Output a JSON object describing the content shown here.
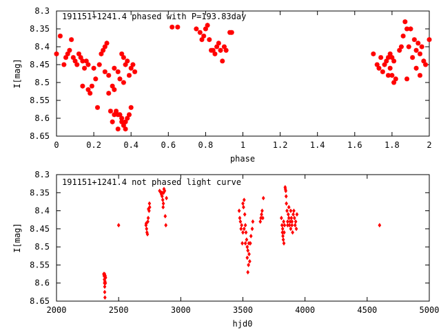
{
  "colors": {
    "points": "#ff0000",
    "axes": "#000000",
    "background": "#ffffff"
  },
  "chart_data": [
    {
      "type": "scatter",
      "title": "191151+1241.4 phased with P=193.83day",
      "xlabel": "phase",
      "ylabel": "I[mag]",
      "xlim": [
        0,
        2
      ],
      "ylim": [
        8.3,
        8.65
      ],
      "y_inverted": true,
      "grid": false,
      "x_ticks": [
        "0",
        "0.2",
        "0.4",
        "0.6",
        "0.8",
        "1",
        "1.2",
        "1.4",
        "1.6",
        "1.8",
        "2"
      ],
      "y_ticks": [
        "8.3",
        "8.35",
        "8.4",
        "8.45",
        "8.5",
        "8.55",
        "8.6",
        "8.65"
      ],
      "marker": "star",
      "series": [
        {
          "points": [
            [
              0.0,
              8.42
            ],
            [
              0.02,
              8.37
            ],
            [
              0.04,
              8.45
            ],
            [
              0.05,
              8.43
            ],
            [
              0.06,
              8.42
            ],
            [
              0.07,
              8.41
            ],
            [
              0.08,
              8.38
            ],
            [
              0.09,
              8.43
            ],
            [
              0.1,
              8.44
            ],
            [
              0.11,
              8.45
            ],
            [
              0.12,
              8.42
            ],
            [
              0.13,
              8.43
            ],
            [
              0.14,
              8.44
            ],
            [
              0.15,
              8.46
            ],
            [
              0.16,
              8.44
            ],
            [
              0.17,
              8.45
            ],
            [
              0.14,
              8.51
            ],
            [
              0.18,
              8.53
            ],
            [
              0.19,
              8.51
            ],
            [
              0.17,
              8.52
            ],
            [
              0.2,
              8.46
            ],
            [
              0.21,
              8.49
            ],
            [
              0.22,
              8.57
            ],
            [
              0.24,
              8.42
            ],
            [
              0.25,
              8.41
            ],
            [
              0.26,
              8.4
            ],
            [
              0.27,
              8.39
            ],
            [
              0.28,
              8.48
            ],
            [
              0.28,
              8.53
            ],
            [
              0.3,
              8.51
            ],
            [
              0.31,
              8.52
            ],
            [
              0.32,
              8.58
            ],
            [
              0.33,
              8.59
            ],
            [
              0.34,
              8.59
            ],
            [
              0.35,
              8.6
            ],
            [
              0.36,
              8.62
            ],
            [
              0.37,
              8.61
            ],
            [
              0.38,
              8.6
            ],
            [
              0.39,
              8.59
            ],
            [
              0.4,
              8.57
            ],
            [
              0.31,
              8.46
            ],
            [
              0.33,
              8.47
            ],
            [
              0.35,
              8.42
            ],
            [
              0.36,
              8.43
            ],
            [
              0.37,
              8.45
            ],
            [
              0.38,
              8.44
            ],
            [
              0.4,
              8.46
            ],
            [
              0.41,
              8.45
            ],
            [
              0.42,
              8.47
            ],
            [
              0.34,
              8.49
            ],
            [
              0.36,
              8.5
            ],
            [
              0.39,
              8.48
            ],
            [
              0.23,
              8.45
            ],
            [
              0.26,
              8.47
            ],
            [
              0.33,
              8.63
            ],
            [
              0.37,
              8.63
            ],
            [
              0.29,
              8.58
            ],
            [
              0.31,
              8.59
            ],
            [
              0.3,
              8.61
            ],
            [
              0.35,
              8.61
            ],
            [
              0.62,
              8.345
            ],
            [
              0.65,
              8.345
            ],
            [
              0.75,
              8.35
            ],
            [
              0.77,
              8.36
            ],
            [
              0.78,
              8.38
            ],
            [
              0.79,
              8.37
            ],
            [
              0.8,
              8.35
            ],
            [
              0.81,
              8.34
            ],
            [
              0.82,
              8.38
            ],
            [
              0.83,
              8.41
            ],
            [
              0.84,
              8.41
            ],
            [
              0.85,
              8.42
            ],
            [
              0.86,
              8.4
            ],
            [
              0.87,
              8.39
            ],
            [
              0.88,
              8.41
            ],
            [
              0.89,
              8.44
            ],
            [
              0.9,
              8.4
            ],
            [
              0.91,
              8.41
            ],
            [
              0.93,
              8.36
            ],
            [
              0.94,
              8.36
            ],
            [
              1.7,
              8.42
            ],
            [
              1.72,
              8.45
            ],
            [
              1.73,
              8.46
            ],
            [
              1.74,
              8.43
            ],
            [
              1.75,
              8.47
            ],
            [
              1.76,
              8.45
            ],
            [
              1.77,
              8.44
            ],
            [
              1.78,
              8.43
            ],
            [
              1.79,
              8.42
            ],
            [
              1.78,
              8.48
            ],
            [
              1.79,
              8.46
            ],
            [
              1.8,
              8.48
            ],
            [
              1.81,
              8.44
            ],
            [
              1.82,
              8.49
            ],
            [
              1.84,
              8.41
            ],
            [
              1.85,
              8.4
            ],
            [
              1.86,
              8.37
            ],
            [
              1.87,
              8.33
            ],
            [
              1.88,
              8.35
            ],
            [
              1.89,
              8.4
            ],
            [
              1.9,
              8.35
            ],
            [
              1.91,
              8.43
            ],
            [
              1.92,
              8.38
            ],
            [
              1.93,
              8.41
            ],
            [
              1.94,
              8.39
            ],
            [
              1.95,
              8.42
            ],
            [
              1.96,
              8.4
            ],
            [
              1.97,
              8.44
            ],
            [
              1.98,
              8.45
            ],
            [
              2.0,
              8.38
            ],
            [
              1.8,
              8.43
            ],
            [
              1.81,
              8.5
            ],
            [
              1.88,
              8.49
            ],
            [
              1.93,
              8.46
            ],
            [
              1.95,
              8.48
            ]
          ]
        }
      ]
    },
    {
      "type": "scatter",
      "title": "191151+1241.4 not phased light curve",
      "xlabel": "hjd0",
      "ylabel": "I[mag]",
      "xlim": [
        2000,
        5000
      ],
      "ylim": [
        8.3,
        8.65
      ],
      "y_inverted": true,
      "grid": false,
      "x_ticks": [
        "2000",
        "2500",
        "3000",
        "3500",
        "4000",
        "4500",
        "5000"
      ],
      "y_ticks": [
        "8.3",
        "8.35",
        "8.4",
        "8.45",
        "8.5",
        "8.55",
        "8.6",
        "8.65"
      ],
      "marker": "diamond",
      "series": [
        {
          "points": [
            [
              2380,
              8.575
            ],
            [
              2383,
              8.58
            ],
            [
              2385,
              8.59
            ],
            [
              2386,
              8.6
            ],
            [
              2388,
              8.61
            ],
            [
              2390,
              8.595
            ],
            [
              2392,
              8.58
            ],
            [
              2394,
              8.6
            ],
            [
              2388,
              8.625
            ],
            [
              2390,
              8.64
            ],
            [
              2395,
              8.585
            ],
            [
              2387,
              8.575
            ],
            [
              2500,
              8.44
            ],
            [
              2720,
              8.44
            ],
            [
              2725,
              8.45
            ],
            [
              2728,
              8.46
            ],
            [
              2732,
              8.465
            ],
            [
              2735,
              8.43
            ],
            [
              2738,
              8.42
            ],
            [
              2740,
              8.395
            ],
            [
              2745,
              8.4
            ],
            [
              2748,
              8.38
            ],
            [
              2750,
              8.39
            ],
            [
              2722,
              8.435
            ],
            [
              2830,
              8.345
            ],
            [
              2840,
              8.35
            ],
            [
              2845,
              8.355
            ],
            [
              2850,
              8.36
            ],
            [
              2855,
              8.37
            ],
            [
              2860,
              8.38
            ],
            [
              2862,
              8.35
            ],
            [
              2865,
              8.34
            ],
            [
              2870,
              8.345
            ],
            [
              2875,
              8.415
            ],
            [
              2880,
              8.44
            ],
            [
              2885,
              8.365
            ],
            [
              2848,
              8.35
            ],
            [
              2858,
              8.39
            ],
            [
              3470,
              8.4
            ],
            [
              3475,
              8.42
            ],
            [
              3480,
              8.43
            ],
            [
              3485,
              8.45
            ],
            [
              3490,
              8.44
            ],
            [
              3495,
              8.49
            ],
            [
              3500,
              8.38
            ],
            [
              3505,
              8.39
            ],
            [
              3510,
              8.37
            ],
            [
              3515,
              8.41
            ],
            [
              3520,
              8.44
            ],
            [
              3525,
              8.46
            ],
            [
              3530,
              8.48
            ],
            [
              3535,
              8.5
            ],
            [
              3540,
              8.51
            ],
            [
              3545,
              8.55
            ],
            [
              3550,
              8.52
            ],
            [
              3555,
              8.54
            ],
            [
              3560,
              8.49
            ],
            [
              3565,
              8.47
            ],
            [
              3575,
              8.45
            ],
            [
              3580,
              8.43
            ],
            [
              3540,
              8.57
            ],
            [
              3535,
              8.53
            ],
            [
              3520,
              8.49
            ],
            [
              3510,
              8.45
            ],
            [
              3500,
              8.46
            ],
            [
              3548,
              8.49
            ],
            [
              3640,
              8.43
            ],
            [
              3645,
              8.42
            ],
            [
              3650,
              8.41
            ],
            [
              3655,
              8.4
            ],
            [
              3660,
              8.42
            ],
            [
              3665,
              8.365
            ],
            [
              3810,
              8.42
            ],
            [
              3815,
              8.44
            ],
            [
              3818,
              8.46
            ],
            [
              3820,
              8.45
            ],
            [
              3822,
              8.47
            ],
            [
              3825,
              8.48
            ],
            [
              3828,
              8.43
            ],
            [
              3830,
              8.49
            ],
            [
              3832,
              8.46
            ],
            [
              3835,
              8.44
            ],
            [
              3840,
              8.335
            ],
            [
              3842,
              8.34
            ],
            [
              3845,
              8.345
            ],
            [
              3848,
              8.36
            ],
            [
              3850,
              8.38
            ],
            [
              3855,
              8.4
            ],
            [
              3860,
              8.43
            ],
            [
              3865,
              8.41
            ],
            [
              3870,
              8.42
            ],
            [
              3875,
              8.44
            ],
            [
              3880,
              8.43
            ],
            [
              3885,
              8.45
            ],
            [
              3890,
              8.42
            ],
            [
              3895,
              8.44
            ],
            [
              3900,
              8.46
            ],
            [
              3905,
              8.41
            ],
            [
              3910,
              8.4
            ],
            [
              3915,
              8.42
            ],
            [
              3920,
              8.44
            ],
            [
              3925,
              8.43
            ],
            [
              3930,
              8.45
            ],
            [
              3935,
              8.41
            ],
            [
              3895,
              8.43
            ],
            [
              3885,
              8.4
            ],
            [
              3860,
              8.44
            ],
            [
              3870,
              8.39
            ],
            [
              4600,
              8.44
            ]
          ]
        }
      ]
    }
  ]
}
